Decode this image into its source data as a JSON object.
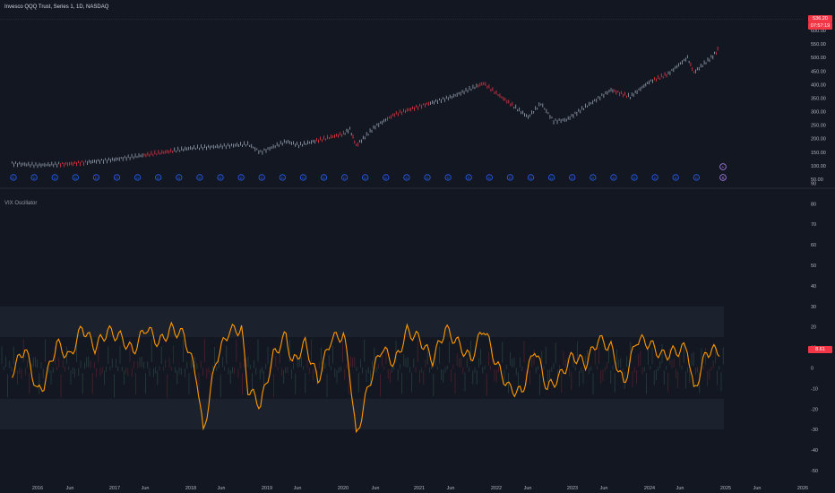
{
  "header": {
    "title": "Invesco QQQ Trust, Series 1, 1D, NASDAQ"
  },
  "oscillator": {
    "name": "VIX Oscillator",
    "last_value": "8.61"
  },
  "price_scale": {
    "last_price": "536.20",
    "countdown": "07:57:19",
    "ticks": [
      "600.00",
      "550.00",
      "500.00",
      "450.00",
      "400.00",
      "350.00",
      "300.00",
      "250.00",
      "200.00",
      "150.00",
      "100.00",
      "50.00"
    ]
  },
  "osc_scale": {
    "ticks": [
      "90",
      "80",
      "70",
      "60",
      "50",
      "40",
      "30",
      "20",
      "10",
      "0",
      "-10",
      "-20",
      "-30",
      "-40",
      "-50"
    ]
  },
  "time_axis": {
    "labels": [
      "2016",
      "Jun",
      "2017",
      "Jun",
      "2018",
      "Jun",
      "2019",
      "Jun",
      "2020",
      "Jun",
      "2021",
      "Jun",
      "2022",
      "Jun",
      "2023",
      "Jun",
      "2024",
      "Jun",
      "2025",
      "Jun",
      "2026"
    ]
  },
  "colors": {
    "background": "#131722",
    "text": "#b2b5be",
    "candle_up": "#9aa5b4",
    "candle_down": "#f23645",
    "oscillator_line": "#ff9800",
    "band_fill": "#1e2230",
    "price_tag": "#f23645",
    "event_marker": "#2962ff",
    "event_marker_special": "#b388ff"
  },
  "event_markers": {
    "count": 34,
    "label": "D",
    "special_labels": [
      "+",
      "S"
    ]
  },
  "chart_data": [
    {
      "type": "line",
      "title": "Invesco QQQ Trust, Series 1, 1D, NASDAQ",
      "xlabel": "",
      "ylabel": "",
      "x_range": [
        "2015-09",
        "2026-01"
      ],
      "ylim": [
        50,
        620
      ],
      "series": [
        {
          "x": [
            "2015-09",
            "2016-01",
            "2016-06",
            "2017-01",
            "2017-06",
            "2018-01",
            "2018-06",
            "2018-10",
            "2018-12",
            "2019-04",
            "2019-06",
            "2020-01",
            "2020-02",
            "2020-03",
            "2020-06",
            "2020-09",
            "2021-01",
            "2021-06",
            "2021-11",
            "2022-01",
            "2022-06",
            "2022-08",
            "2022-10",
            "2022-12",
            "2023-03",
            "2023-07",
            "2023-10",
            "2024-01",
            "2024-04",
            "2024-07",
            "2024-08",
            "2024-11",
            "2024-12"
          ],
          "values": [
            108,
            102,
            107,
            123,
            140,
            165,
            172,
            180,
            150,
            190,
            176,
            218,
            235,
            175,
            245,
            290,
            320,
            355,
            405,
            368,
            280,
            330,
            265,
            270,
            318,
            380,
            355,
            410,
            440,
            500,
            445,
            505,
            536
          ]
        }
      ]
    },
    {
      "type": "line",
      "title": "VIX Oscillator",
      "xlabel": "",
      "ylabel": "",
      "ylim": [
        -55,
        95
      ],
      "bands": [
        [
          -30,
          30
        ],
        [
          -15,
          15
        ]
      ],
      "series": [
        {
          "x": [
            "2015-09",
            "2015-11",
            "2016-01",
            "2016-02",
            "2016-04",
            "2016-06",
            "2016-08",
            "2016-10",
            "2016-12",
            "2017-02",
            "2017-04",
            "2017-06",
            "2017-08",
            "2017-10",
            "2017-12",
            "2018-02",
            "2018-03",
            "2018-05",
            "2018-07",
            "2018-09",
            "2018-10",
            "2018-12",
            "2019-02",
            "2019-04",
            "2019-05",
            "2019-07",
            "2019-09",
            "2019-11",
            "2020-01",
            "2020-02",
            "2020-03",
            "2020-05",
            "2020-07",
            "2020-09",
            "2020-11",
            "2021-01",
            "2021-03",
            "2021-05",
            "2021-07",
            "2021-09",
            "2021-11",
            "2022-01",
            "2022-03",
            "2022-05",
            "2022-07",
            "2022-09",
            "2022-11",
            "2023-01",
            "2023-03",
            "2023-05",
            "2023-07",
            "2023-09",
            "2023-11",
            "2024-01",
            "2024-03",
            "2024-05",
            "2024-07",
            "2024-08",
            "2024-10",
            "2024-12"
          ],
          "values": [
            -2,
            10,
            -12,
            -8,
            12,
            5,
            20,
            10,
            18,
            15,
            8,
            20,
            12,
            19,
            16,
            -5,
            -32,
            4,
            18,
            19,
            -10,
            -18,
            6,
            16,
            2,
            12,
            -6,
            14,
            16,
            -2,
            -34,
            -8,
            10,
            2,
            18,
            14,
            4,
            19,
            12,
            4,
            20,
            2,
            -10,
            -12,
            10,
            -10,
            -4,
            6,
            2,
            14,
            10,
            -8,
            14,
            12,
            6,
            8,
            10,
            -12,
            8,
            8.61
          ]
        }
      ]
    }
  ]
}
